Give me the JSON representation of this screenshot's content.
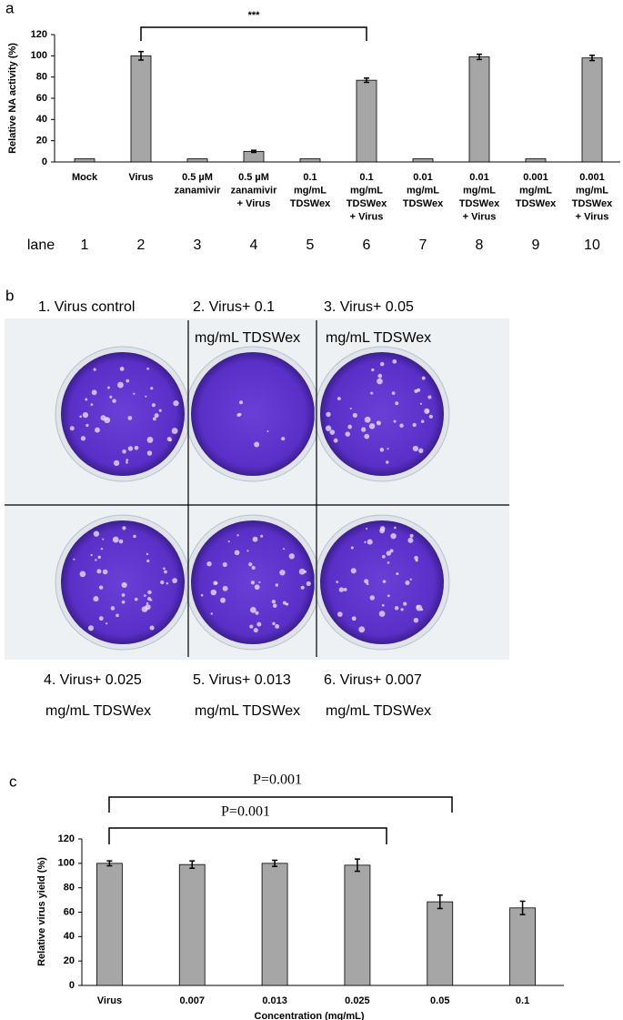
{
  "chart_data": [
    {
      "type": "bar",
      "label": "a",
      "y_label": "Relative NA activity (%)",
      "categories": [
        [
          "Mock"
        ],
        [
          "Virus"
        ],
        [
          "0.5 µM",
          "zanamivir"
        ],
        [
          "0.5 µM",
          "zanamivir",
          "+ Virus"
        ],
        [
          "0.1",
          "mg/mL",
          "TDSWex"
        ],
        [
          "0.1",
          "mg/mL",
          "TDSWex",
          "+ Virus"
        ],
        [
          "0.01",
          "mg/mL",
          "TDSWex"
        ],
        [
          "0.01",
          "mg/mL",
          "TDSWex",
          "+ Virus"
        ],
        [
          "0.001",
          "mg/mL",
          "TDSWex"
        ],
        [
          "0.001",
          "mg/mL",
          "TDSWex",
          "+ Virus"
        ]
      ],
      "values": [
        3,
        100,
        3,
        10,
        3,
        77,
        3,
        99,
        3,
        98
      ],
      "errors": [
        0,
        4,
        0,
        1,
        0,
        2,
        0,
        2.5,
        0,
        2.5
      ],
      "color": "#a6a6a6",
      "ylim": [
        0,
        120
      ],
      "yticks": [
        0,
        20,
        40,
        60,
        80,
        100,
        120
      ],
      "annotations": [
        "***"
      ],
      "lane_label": "lane",
      "lanes": [
        1,
        2,
        3,
        4,
        5,
        6,
        7,
        8,
        9,
        10
      ]
    },
    {
      "type": "bar",
      "label": "c",
      "y_label": "Relative virus yield (%)",
      "x_label": "Concentration (mg/mL)",
      "categories": [
        [
          "Virus"
        ],
        [
          "0.007"
        ],
        [
          "0.013"
        ],
        [
          "0.025"
        ],
        [
          "0.05"
        ],
        [
          "0.1"
        ]
      ],
      "values": [
        100,
        99,
        100,
        98.5,
        68.5,
        63.5
      ],
      "errors": [
        2,
        3,
        2.5,
        5,
        5.5,
        5.5
      ],
      "color": "#a6a6a6",
      "ylim": [
        0,
        120
      ],
      "yticks": [
        0,
        20,
        40,
        60,
        80,
        100,
        120
      ],
      "annotations": [
        "P=0.001",
        "P=0.001"
      ]
    }
  ],
  "panel_b": {
    "label": "b",
    "wells": [
      [
        "1. Virus control"
      ],
      [
        "2. Virus+ 0.1",
        "mg/mL TDSWex"
      ],
      [
        "3. Virus+ 0.05",
        "mg/mL TDSWex"
      ],
      [
        "4. Virus+ 0.025",
        "mg/mL TDSWex"
      ],
      [
        "5. Virus+ 0.013",
        "mg/mL TDSWex"
      ],
      [
        "6. Virus+ 0.007",
        "mg/mL TDSWex"
      ]
    ]
  }
}
